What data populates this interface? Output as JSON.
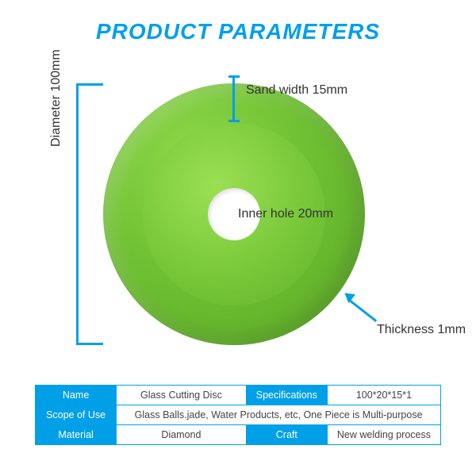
{
  "title": "PRODUCT PARAMETERS",
  "title_color": "#00a0e9",
  "accent_color": "#00a0e9",
  "background_color": "#ffffff",
  "disc": {
    "outer_diameter_mm": 100,
    "inner_hole_mm": 20,
    "sand_width_mm": 15,
    "thickness_mm": 1,
    "outer_color": "#6fc032",
    "inner_color": "#76c638",
    "hole_color": "#ffffff"
  },
  "labels": {
    "diameter": "Diameter 100mm",
    "sand_width": "Sand width 15mm",
    "inner_hole": "Inner hole 20mm",
    "thickness": "Thickness 1mm"
  },
  "table": {
    "header_bg": "#00a0e9",
    "header_fg": "#ffffff",
    "border_color": "#00a0e9",
    "cell_fg": "#444444",
    "rows": [
      {
        "cells": [
          {
            "text": "Name",
            "header": true,
            "colspan": 1
          },
          {
            "text": "Glass Cutting Disc",
            "header": false,
            "colspan": 1
          },
          {
            "text": "Specifications",
            "header": true,
            "colspan": 1
          },
          {
            "text": "100*20*15*1",
            "header": false,
            "colspan": 1
          }
        ]
      },
      {
        "cells": [
          {
            "text": "Scope of Use",
            "header": true,
            "colspan": 1
          },
          {
            "text": "Glass Balls.jade, Water Products, etc, One Piece is Multi-purpose",
            "header": false,
            "colspan": 3
          }
        ]
      },
      {
        "cells": [
          {
            "text": "Material",
            "header": true,
            "colspan": 1
          },
          {
            "text": "Diamond",
            "header": false,
            "colspan": 1
          },
          {
            "text": "Craft",
            "header": true,
            "colspan": 1
          },
          {
            "text": "New welding process",
            "header": false,
            "colspan": 1
          }
        ]
      }
    ],
    "col_widths_pct": [
      20,
      32,
      20,
      28
    ]
  }
}
